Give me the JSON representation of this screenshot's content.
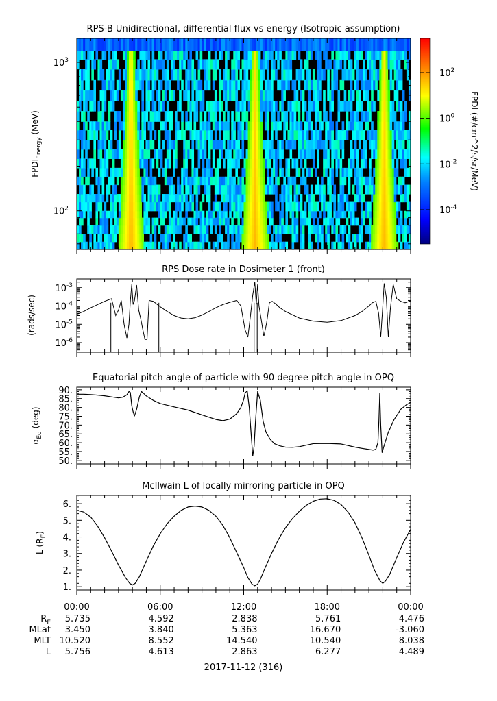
{
  "colors": {
    "axis": "#000000",
    "trace": "#000000",
    "colorbar_stops": [
      "#00007f",
      "#0000ff",
      "#0080ff",
      "#00ffff",
      "#00ff00",
      "#ffff00",
      "#ff8000",
      "#ff0000"
    ]
  },
  "chart_data": [
    {
      "type": "heatmap",
      "title": "RPS-B  Unidirectional, differential flux vs energy (Isotropic assumption)",
      "ylabel_main": "FPDI",
      "ylabel_sub": "Energy",
      "ylabel_units": "(MeV)",
      "yscale": "log",
      "ylim": [
        55,
        1450
      ],
      "y_ticks": [
        {
          "base": "10",
          "exp": "2",
          "value": 100
        },
        {
          "base": "10",
          "exp": "3",
          "value": 1000
        }
      ],
      "energy_bins_mev": [
        55,
        62,
        70,
        80,
        90,
        100,
        115,
        130,
        150,
        170,
        195,
        225,
        260,
        300,
        350,
        400,
        470,
        550,
        650,
        760,
        900,
        1050,
        1200,
        1450
      ],
      "xlim_hours": [
        0,
        24
      ],
      "radiation_belt_crossings_hours": [
        3.6,
        4.2,
        12.6,
        13.05,
        21.9,
        22.3
      ],
      "colorbar": {
        "label": "FPDI (#/cm^2/s/sr/MeV)",
        "log_range": [
          -5.5,
          3.5
        ],
        "ticks": [
          {
            "base": "10",
            "exp": "2",
            "value": 2
          },
          {
            "base": "10",
            "exp": "0",
            "value": 0
          },
          {
            "base": "10",
            "exp": "-2",
            "value": -2
          },
          {
            "base": "10",
            "exp": "-4",
            "value": -4
          }
        ]
      }
    },
    {
      "type": "line",
      "title": "RPS  Dose rate in Dosimeter 1 (front)",
      "ylabel": "(rads/sec)",
      "yscale": "log",
      "ylim": [
        3e-07,
        0.003
      ],
      "y_ticks": [
        {
          "base": "10",
          "exp": "-3",
          "value": -3
        },
        {
          "base": "10",
          "exp": "-4",
          "value": -4
        },
        {
          "base": "10",
          "exp": "-5",
          "value": -5
        },
        {
          "base": "10",
          "exp": "-6",
          "value": -6
        }
      ],
      "x_hours": [
        0,
        0.5,
        1,
        1.5,
        2,
        2.5,
        2.8,
        3.0,
        3.2,
        3.4,
        3.6,
        3.75,
        3.85,
        3.95,
        4.05,
        4.15,
        4.3,
        4.45,
        4.6,
        4.75,
        4.9,
        5.05,
        5.2,
        5.5,
        6,
        6.5,
        7,
        7.5,
        8,
        8.5,
        9,
        9.5,
        10,
        10.5,
        11,
        11.5,
        11.8,
        12.1,
        12.3,
        12.5,
        12.65,
        12.8,
        12.9,
        13.0,
        13.1,
        13.25,
        13.45,
        13.65,
        13.85,
        14.05,
        14.3,
        14.6,
        15,
        16,
        17,
        18,
        19,
        20,
        20.5,
        21,
        21.25,
        21.5,
        21.7,
        21.85,
        22.0,
        22.1,
        22.25,
        22.4,
        22.55,
        22.75,
        23,
        23.3,
        23.6,
        24
      ],
      "values": [
        3.5e-05,
        5e-05,
        8e-05,
        0.00012,
        0.00018,
        0.00025,
        3e-05,
        6e-05,
        0.0002,
        1e-05,
        1.8e-06,
        1e-05,
        0.00018,
        0.0015,
        0.00012,
        0.0002,
        0.0014,
        6e-05,
        2e-05,
        5e-06,
        1.5e-06,
        1.5e-06,
        0.0002,
        0.00018,
        9e-05,
        5e-05,
        3e-05,
        2.2e-05,
        2e-05,
        2.3e-05,
        3.2e-05,
        5e-05,
        8e-05,
        0.00012,
        0.00016,
        0.0002,
        0.0001,
        5e-06,
        2e-06,
        3.5e-05,
        0.0004,
        0.002,
        0.00012,
        0.0015,
        0.0001,
        2e-05,
        2.2e-06,
        1.2e-05,
        0.00015,
        0.00018,
        0.00013,
        8e-05,
        5e-05,
        2.2e-05,
        1.5e-05,
        1.3e-05,
        1.6e-05,
        3e-05,
        5e-05,
        0.0001,
        0.00015,
        0.00018,
        4e-05,
        2e-06,
        0.0001,
        0.0017,
        0.0003,
        2e-06,
        8e-05,
        0.0015,
        0.00025,
        0.00018,
        0.00015,
        0.00019
      ],
      "spikes_hours": [
        2.45,
        5.9,
        12.75,
        12.97
      ]
    },
    {
      "type": "line",
      "title": "Equatorial pitch angle of particle with 90 degree pitch angle in OPQ",
      "ylabel_main": "α",
      "ylabel_sub": "Eq",
      "ylabel_units": "(deg)",
      "ylim": [
        48,
        91.5
      ],
      "y_ticks": [
        "50.",
        "55.",
        "60.",
        "65.",
        "70.",
        "75.",
        "80.",
        "85.",
        "90."
      ],
      "x_hours": [
        0,
        0.5,
        1,
        1.5,
        2,
        2.5,
        3,
        3.3,
        3.6,
        3.75,
        3.85,
        3.9,
        3.95,
        4.05,
        4.15,
        4.3,
        4.5,
        4.65,
        4.8,
        5,
        5.5,
        6,
        7,
        8,
        9,
        10,
        10.5,
        11,
        11.5,
        11.8,
        12.0,
        12.1,
        12.25,
        12.4,
        12.55,
        12.65,
        12.75,
        12.85,
        13.0,
        13.2,
        13.4,
        13.6,
        13.9,
        14.2,
        14.6,
        15,
        15.5,
        16,
        17,
        18,
        19,
        20,
        20.5,
        21,
        21.3,
        21.5,
        21.65,
        21.72,
        21.78,
        21.85,
        21.95,
        22.1,
        22.4,
        22.8,
        23.3,
        23.7,
        24
      ],
      "values": [
        87.5,
        87.5,
        87.3,
        87,
        86.6,
        86,
        85.4,
        85.8,
        87.2,
        89,
        88.5,
        85,
        81,
        77.5,
        75.2,
        79,
        86,
        89,
        88,
        86.5,
        84,
        82.2,
        80.3,
        78.5,
        75.8,
        73.2,
        72.5,
        73.4,
        76.5,
        80,
        84.5,
        88,
        89.5,
        80,
        63,
        52.5,
        58,
        72,
        89,
        84,
        72,
        66,
        62,
        59.5,
        58.2,
        57.5,
        57.4,
        57.8,
        59.5,
        59.6,
        59.3,
        57.5,
        56.8,
        56.2,
        55.8,
        56.3,
        60,
        72,
        88,
        70,
        54.5,
        58.5,
        66,
        73,
        79,
        81.5,
        82.8
      ]
    },
    {
      "type": "line",
      "title": "McIlwain L of locally mirroring particle in OPQ",
      "ylabel_main": "L (R",
      "ylabel_sub": "E",
      "ylabel_tail": ")",
      "ylim": [
        0.8,
        6.5
      ],
      "y_ticks": [
        "1.",
        "2.",
        "3.",
        "4.",
        "5.",
        "6."
      ],
      "x_hours": [
        0,
        0.5,
        1,
        1.5,
        2,
        2.5,
        3,
        3.5,
        3.8,
        4.0,
        4.2,
        4.5,
        5,
        5.5,
        6,
        6.5,
        7,
        7.5,
        8,
        8.5,
        9,
        9.5,
        10,
        10.5,
        11,
        11.5,
        12,
        12.3,
        12.6,
        12.8,
        13.0,
        13.2,
        13.5,
        14,
        14.5,
        15,
        15.5,
        16,
        16.5,
        17,
        17.5,
        18,
        18.5,
        19,
        19.5,
        20,
        20.5,
        21,
        21.4,
        21.8,
        22.0,
        22.2,
        22.5,
        23,
        23.5,
        24
      ],
      "values": [
        5.6,
        5.5,
        5.2,
        4.65,
        3.95,
        3.15,
        2.3,
        1.55,
        1.2,
        1.1,
        1.2,
        1.6,
        2.55,
        3.45,
        4.2,
        4.8,
        5.25,
        5.6,
        5.8,
        5.85,
        5.8,
        5.6,
        5.25,
        4.7,
        3.95,
        3.05,
        2.15,
        1.55,
        1.15,
        1.05,
        1.15,
        1.45,
        2.05,
        3.0,
        3.85,
        4.55,
        5.1,
        5.55,
        5.9,
        6.15,
        6.28,
        6.3,
        6.2,
        5.95,
        5.5,
        4.85,
        3.95,
        2.9,
        2.0,
        1.35,
        1.2,
        1.35,
        1.75,
        2.75,
        3.7,
        4.45
      ]
    }
  ],
  "time_axis": {
    "tick_labels": [
      "00:00",
      "06:00",
      "12:00",
      "18:00",
      "00:00"
    ],
    "tick_hours": [
      0,
      6,
      12,
      18,
      24
    ],
    "date_label": "2017-11-12 (316)"
  },
  "ephemeris": [
    {
      "label": "R",
      "label_sub": "E",
      "values": [
        "5.735",
        "4.592",
        "2.838",
        "5.761",
        "4.476"
      ]
    },
    {
      "label": "MLat",
      "label_sub": "",
      "values": [
        "3.450",
        "3.840",
        "5.363",
        "16.670",
        "-3.060"
      ]
    },
    {
      "label": "MLT",
      "label_sub": "",
      "values": [
        "10.520",
        "8.552",
        "14.540",
        "10.540",
        "8.038"
      ]
    },
    {
      "label": "L",
      "label_sub": "",
      "values": [
        "5.756",
        "4.613",
        "2.863",
        "6.277",
        "4.489"
      ]
    }
  ]
}
